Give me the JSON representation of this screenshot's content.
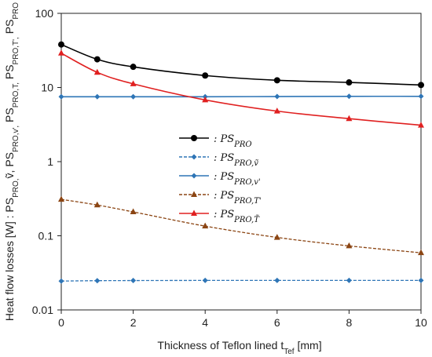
{
  "chart_data": {
    "type": "line",
    "title": "",
    "xlabel": "Thickness of Teflon lined t",
    "xlabel_sub": "Tef",
    "xlabel_unit": " [mm]",
    "ylabel": "Heat flow losses [W] : PS_PRO,ṽ, PS_PRO,v', PS_PRO,T, PS_PRO,T', PS_PRO",
    "x_ticks": [
      "0",
      "2",
      "4",
      "6",
      "8",
      "10"
    ],
    "y_ticks": [
      "0.01",
      "0.1",
      "1",
      "10",
      "100"
    ],
    "xlim": [
      0,
      10
    ],
    "ylim": [
      0.01,
      100
    ],
    "yscale": "log",
    "grid": false,
    "legend_position": "center",
    "x": [
      0,
      1,
      2,
      4,
      6,
      8,
      10
    ],
    "series": [
      {
        "name": ": PS_PRO",
        "color": "#000000",
        "marker": "circle",
        "dash": "solid",
        "values": [
          38,
          24,
          19,
          14.5,
          12.5,
          11.7,
          10.8
        ]
      },
      {
        "name": ": PS_PRO,ṽ",
        "color": "#2E75B6",
        "marker": "diamond",
        "dash": "dashed",
        "values": [
          0.0245,
          0.0248,
          0.0249,
          0.025,
          0.025,
          0.025,
          0.025
        ]
      },
      {
        "name": ": PS_PRO,v'",
        "color": "#2E75B6",
        "marker": "diamond",
        "dash": "solid",
        "values": [
          7.5,
          7.5,
          7.5,
          7.5,
          7.55,
          7.6,
          7.6
        ]
      },
      {
        "name": ": PS_PRO,T'",
        "color": "#8B4513",
        "marker": "triangle",
        "dash": "dashed",
        "values": [
          0.31,
          0.26,
          0.21,
          0.135,
          0.095,
          0.073,
          0.059
        ]
      },
      {
        "name": ": PS_PRO,T̃",
        "color": "#E02020",
        "marker": "triangle",
        "dash": "solid",
        "values": [
          29,
          16,
          11.2,
          6.8,
          4.8,
          3.8,
          3.1
        ]
      }
    ]
  }
}
